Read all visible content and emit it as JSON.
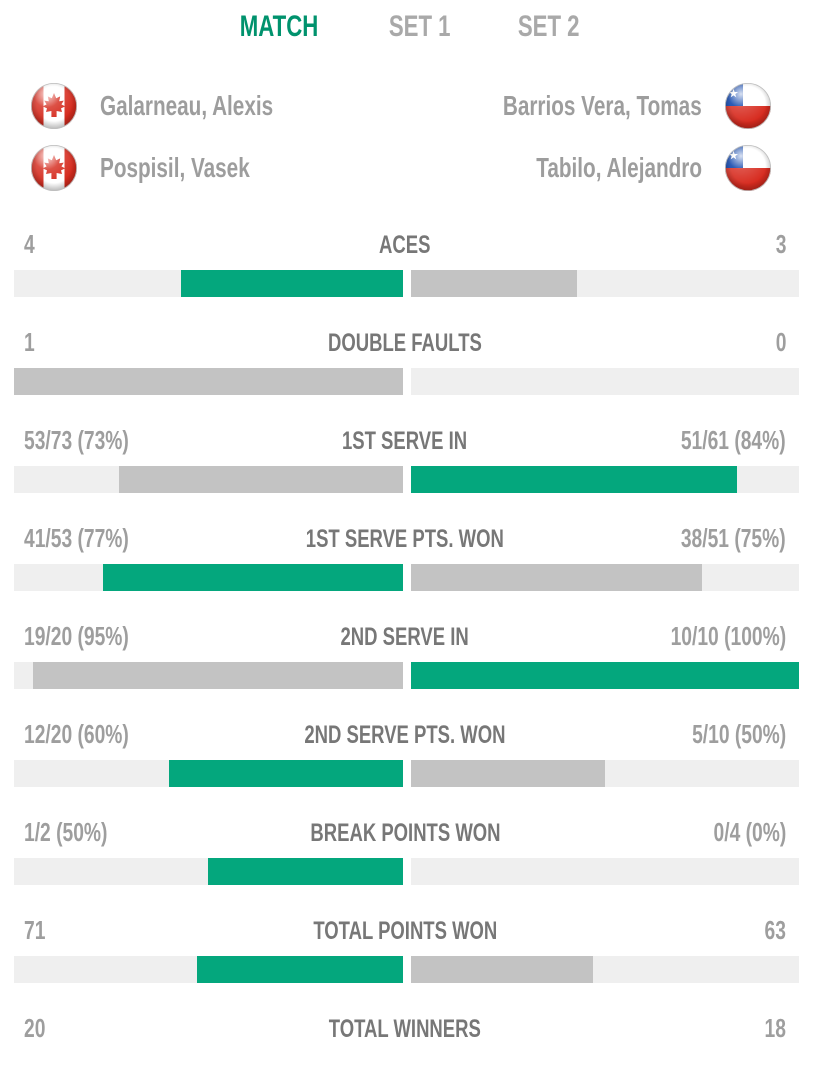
{
  "tabs": [
    {
      "label": "MATCH",
      "active": true
    },
    {
      "label": "SET 1",
      "active": false
    },
    {
      "label": "SET 2",
      "active": false
    }
  ],
  "teams": {
    "left": {
      "country": "Canada",
      "players": [
        {
          "name": "Galarneau, Alexis"
        },
        {
          "name": "Pospisil, Vasek"
        }
      ]
    },
    "right": {
      "country": "Chile",
      "players": [
        {
          "name": "Barrios Vera, Tomas"
        },
        {
          "name": "Tabilo, Alejandro"
        }
      ]
    }
  },
  "colors": {
    "green": "#04a77d",
    "gray": "#c3c3c3",
    "track": "#efefef",
    "tab_active": "#00926d"
  },
  "stats": [
    {
      "label": "ACES",
      "left": {
        "text": "4",
        "fill_pct": 57.1,
        "color": "green"
      },
      "right": {
        "text": "3",
        "fill_pct": 42.9,
        "color": "gray"
      },
      "bar_visible": true
    },
    {
      "label": "DOUBLE FAULTS",
      "left": {
        "text": "1",
        "fill_pct": 100,
        "color": "gray"
      },
      "right": {
        "text": "0",
        "fill_pct": 0,
        "color": "gray"
      },
      "bar_visible": true
    },
    {
      "label": "1ST SERVE IN",
      "left": {
        "text": "53/73 (73%)",
        "fill_pct": 73,
        "color": "gray"
      },
      "right": {
        "text": "51/61 (84%)",
        "fill_pct": 84,
        "color": "green"
      },
      "bar_visible": true
    },
    {
      "label": "1ST SERVE PTS. WON",
      "left": {
        "text": "41/53 (77%)",
        "fill_pct": 77,
        "color": "green"
      },
      "right": {
        "text": "38/51 (75%)",
        "fill_pct": 75,
        "color": "gray"
      },
      "bar_visible": true
    },
    {
      "label": "2ND SERVE IN",
      "left": {
        "text": "19/20 (95%)",
        "fill_pct": 95,
        "color": "gray"
      },
      "right": {
        "text": "10/10 (100%)",
        "fill_pct": 100,
        "color": "green"
      },
      "bar_visible": true
    },
    {
      "label": "2ND SERVE PTS. WON",
      "left": {
        "text": "12/20 (60%)",
        "fill_pct": 60,
        "color": "green"
      },
      "right": {
        "text": "5/10 (50%)",
        "fill_pct": 50,
        "color": "gray"
      },
      "bar_visible": true
    },
    {
      "label": "BREAK POINTS WON",
      "left": {
        "text": "1/2 (50%)",
        "fill_pct": 50,
        "color": "green"
      },
      "right": {
        "text": "0/4 (0%)",
        "fill_pct": 0,
        "color": "gray"
      },
      "bar_visible": true
    },
    {
      "label": "TOTAL POINTS WON",
      "left": {
        "text": "71",
        "fill_pct": 53,
        "color": "green"
      },
      "right": {
        "text": "63",
        "fill_pct": 47,
        "color": "gray"
      },
      "bar_visible": true
    },
    {
      "label": "TOTAL WINNERS",
      "left": {
        "text": "20"
      },
      "right": {
        "text": "18"
      },
      "bar_visible": false
    }
  ]
}
